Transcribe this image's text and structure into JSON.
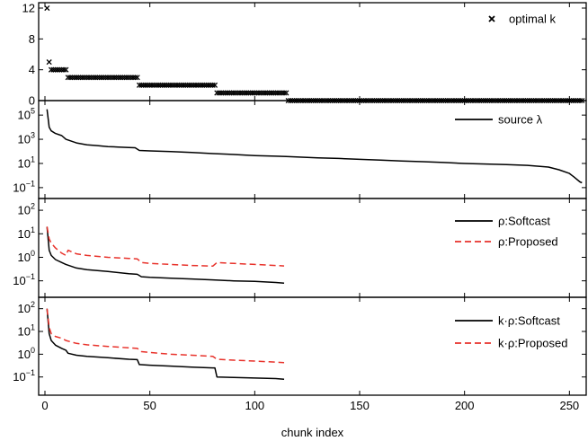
{
  "chart_data": {
    "x_axis": {
      "label": "chunk index",
      "range": [
        -3,
        258
      ],
      "ticks": [
        0,
        50,
        100,
        150,
        200,
        250
      ],
      "tick_labels": [
        "0",
        "50",
        "100",
        "150",
        "200",
        "250"
      ]
    },
    "panels": [
      {
        "type": "scatter",
        "y_scale": "linear",
        "ylim": [
          0,
          12.7
        ],
        "y_ticks": [
          0,
          4,
          8,
          12
        ],
        "y_tick_labels": [
          "0",
          "4",
          "8",
          "12"
        ],
        "legend_position": "top-right",
        "series": [
          {
            "name": "optimal k",
            "marker": "x",
            "color": "#000000",
            "segments": [
              {
                "from": 1,
                "to": 1,
                "value": 12
              },
              {
                "from": 2,
                "to": 2,
                "value": 5
              },
              {
                "from": 3,
                "to": 10,
                "value": 4
              },
              {
                "from": 11,
                "to": 44,
                "value": 3
              },
              {
                "from": 45,
                "to": 81,
                "value": 2
              },
              {
                "from": 82,
                "to": 115,
                "value": 1
              },
              {
                "from": 116,
                "to": 256,
                "value": 0
              }
            ]
          }
        ]
      },
      {
        "type": "line",
        "y_scale": "log",
        "ylim_log10": [
          -1.9,
          6.2
        ],
        "y_ticks": [
          0.1,
          10,
          1000,
          100000
        ],
        "y_tick_labels": [
          {
            "base": "10",
            "exp": "−1"
          },
          {
            "base": "10",
            "exp": "1"
          },
          {
            "base": "10",
            "exp": "3"
          },
          {
            "base": "10",
            "exp": "5"
          }
        ],
        "legend_position": "top-right",
        "series": [
          {
            "name": "source λ",
            "color": "#000000",
            "style": "solid",
            "x": [
              1,
              2,
              3,
              5,
              8,
              10,
              15,
              20,
              25,
              30,
              35,
              40,
              43,
              45,
              50,
              60,
              70,
              80,
              90,
              100,
              110,
              115,
              120,
              130,
              140,
              150,
              160,
              170,
              180,
              190,
              200,
              210,
              220,
              230,
              240,
              245,
              250,
              252,
              255,
              256
            ],
            "y": [
              300000,
              10000,
              5000,
              3000,
              2000,
              1000,
              500,
              350,
              300,
              250,
              230,
              210,
              200,
              120,
              110,
              95,
              80,
              65,
              55,
              45,
              40,
              37,
              34,
              29,
              26,
              22,
              19,
              16,
              14,
              12,
              10,
              9,
              8,
              7,
              5,
              3,
              1.5,
              0.8,
              0.3,
              0.25
            ]
          }
        ]
      },
      {
        "type": "line",
        "y_scale": "log",
        "ylim_log10": [
          -1.7,
          2.5
        ],
        "y_ticks": [
          0.1,
          1,
          10,
          100
        ],
        "y_tick_labels": [
          {
            "base": "10",
            "exp": "−1"
          },
          {
            "base": "10",
            "exp": "0"
          },
          {
            "base": "10",
            "exp": "1"
          },
          {
            "base": "10",
            "exp": "2"
          }
        ],
        "legend_position": "top-right",
        "series": [
          {
            "name": "ρ:Softcast",
            "color": "#000000",
            "style": "solid",
            "x": [
              1,
              2,
              3,
              5,
              8,
              10,
              15,
              20,
              30,
              40,
              44,
              46,
              50,
              60,
              70,
              80,
              90,
              100,
              110,
              114
            ],
            "y": [
              20,
              2,
              1.2,
              0.8,
              0.6,
              0.5,
              0.35,
              0.3,
              0.25,
              0.2,
              0.19,
              0.15,
              0.14,
              0.13,
              0.12,
              0.11,
              0.1,
              0.095,
              0.085,
              0.08
            ]
          },
          {
            "name": "ρ:Proposed",
            "color": "#e8322b",
            "style": "dashed",
            "x": [
              1,
              2,
              3,
              5,
              8,
              10,
              11,
              15,
              20,
              30,
              40,
              44,
              46,
              50,
              60,
              70,
              80,
              82,
              90,
              100,
              110,
              114
            ],
            "y": [
              20,
              6,
              4,
              2.5,
              1.5,
              1.2,
              2,
              1.4,
              1.2,
              1,
              0.9,
              0.85,
              0.6,
              0.55,
              0.5,
              0.45,
              0.42,
              0.6,
              0.55,
              0.5,
              0.45,
              0.43
            ]
          }
        ]
      },
      {
        "type": "line",
        "y_scale": "log",
        "ylim_log10": [
          -1.8,
          2.5
        ],
        "y_ticks": [
          0.1,
          1,
          10,
          100
        ],
        "y_tick_labels": [
          {
            "base": "10",
            "exp": "−1"
          },
          {
            "base": "10",
            "exp": "0"
          },
          {
            "base": "10",
            "exp": "1"
          },
          {
            "base": "10",
            "exp": "2"
          }
        ],
        "legend_position": "top-right",
        "series": [
          {
            "name": "k·ρ:Softcast",
            "color": "#000000",
            "style": "solid",
            "x": [
              1,
              2,
              3,
              5,
              8,
              10,
              11,
              15,
              20,
              30,
              40,
              44,
              45,
              50,
              60,
              70,
              80,
              81,
              82,
              90,
              100,
              110,
              114
            ],
            "y": [
              100,
              8,
              4,
              2.5,
              1.8,
              1.5,
              1.1,
              0.9,
              0.8,
              0.7,
              0.6,
              0.58,
              0.35,
              0.33,
              0.3,
              0.27,
              0.25,
              0.25,
              0.1,
              0.095,
              0.09,
              0.085,
              0.08
            ]
          },
          {
            "name": "k·ρ:Proposed",
            "color": "#e8322b",
            "style": "dashed",
            "x": [
              1,
              2,
              3,
              5,
              8,
              10,
              15,
              20,
              30,
              40,
              44,
              46,
              50,
              60,
              70,
              80,
              82,
              90,
              100,
              110,
              114
            ],
            "y": [
              100,
              15,
              8,
              6,
              5,
              4,
              3,
              2.6,
              2.2,
              1.9,
              1.8,
              1.3,
              1.2,
              1,
              0.9,
              0.8,
              0.6,
              0.55,
              0.5,
              0.45,
              0.43
            ]
          }
        ]
      }
    ]
  }
}
